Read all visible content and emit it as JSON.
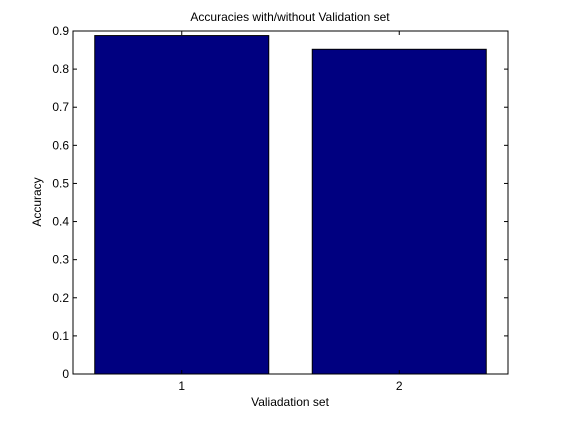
{
  "chart_data": {
    "type": "bar",
    "title": "Accuracies with/without Validation set",
    "xlabel": "Valiadation set",
    "ylabel": "Accuracy",
    "categories": [
      "1",
      "2"
    ],
    "values": [
      0.888,
      0.852
    ],
    "xlim": [
      0.5,
      2.5
    ],
    "ylim": [
      0,
      0.9
    ],
    "yticks": [
      0,
      0.1,
      0.2,
      0.3,
      0.4,
      0.5,
      0.6,
      0.7,
      0.8,
      0.9
    ],
    "ytick_labels": [
      "0",
      "0.1",
      "0.2",
      "0.3",
      "0.4",
      "0.5",
      "0.6",
      "0.7",
      "0.8",
      "0.9"
    ],
    "bar_width": 0.8,
    "grid": false,
    "legend": "none",
    "colors": {
      "bar_fill": "#000080",
      "bar_edge": "#000000",
      "axes": "#000000",
      "background": "#ffffff"
    }
  }
}
